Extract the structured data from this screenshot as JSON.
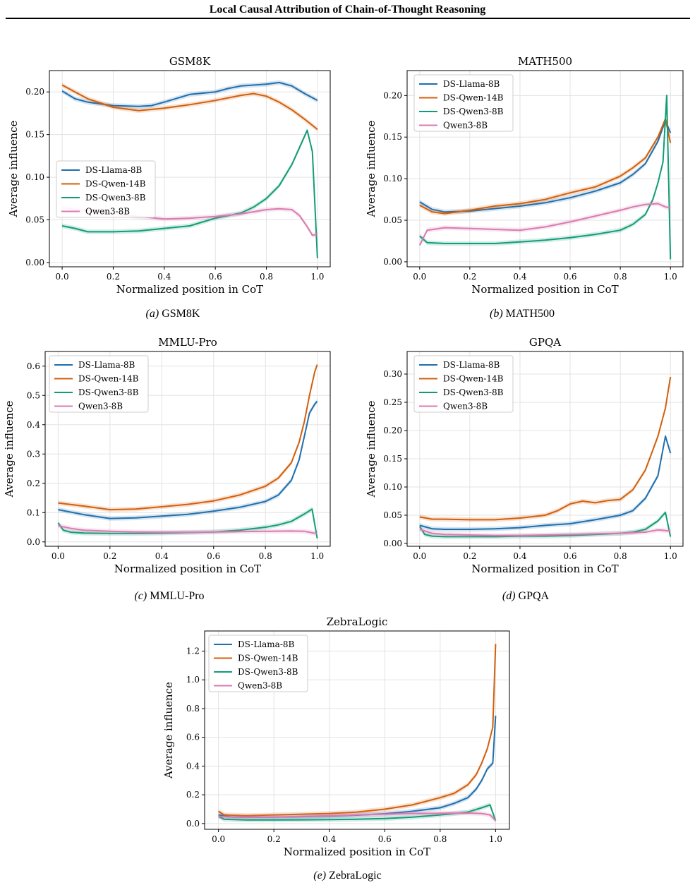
{
  "page": {
    "header_title": "Local Causal Attribution of Chain-of-Thought Reasoning",
    "colors": {
      "DS-Llama-8B": "#1f6fad",
      "DS-Qwen-14B": "#d35f0b",
      "DS-Qwen3-8B": "#129c76",
      "Qwen3-8B": "#d97bb0"
    }
  },
  "chart_data": [
    {
      "id": "a",
      "type": "line",
      "title": "GSM8K",
      "caption_label": "(a)",
      "caption_text": "GSM8K",
      "xlabel": "Normalized position in CoT",
      "ylabel": "Average influence",
      "xlim": [
        -0.05,
        1.05
      ],
      "ylim": [
        -0.005,
        0.225
      ],
      "xticks": [
        0.0,
        0.2,
        0.4,
        0.6,
        0.8,
        1.0
      ],
      "xtick_labels": [
        "0.0",
        "0.2",
        "0.4",
        "0.6",
        "0.8",
        "1.0"
      ],
      "yticks": [
        0.0,
        0.05,
        0.1,
        0.15,
        0.2
      ],
      "ytick_labels": [
        "0.00",
        "0.05",
        "0.10",
        "0.15",
        "0.20"
      ],
      "grid": true,
      "legend_position": "center-left",
      "series": [
        {
          "name": "DS-Llama-8B",
          "x": [
            0,
            0.05,
            0.1,
            0.2,
            0.3,
            0.35,
            0.4,
            0.5,
            0.6,
            0.65,
            0.7,
            0.8,
            0.85,
            0.9,
            0.95,
            1.0
          ],
          "y": [
            0.201,
            0.192,
            0.188,
            0.184,
            0.183,
            0.184,
            0.188,
            0.197,
            0.2,
            0.204,
            0.207,
            0.209,
            0.211,
            0.207,
            0.198,
            0.19
          ]
        },
        {
          "name": "DS-Qwen-14B",
          "x": [
            0,
            0.05,
            0.1,
            0.2,
            0.3,
            0.4,
            0.5,
            0.6,
            0.7,
            0.75,
            0.8,
            0.85,
            0.9,
            0.95,
            1.0
          ],
          "y": [
            0.208,
            0.2,
            0.192,
            0.182,
            0.178,
            0.181,
            0.185,
            0.19,
            0.196,
            0.198,
            0.195,
            0.188,
            0.179,
            0.168,
            0.156
          ]
        },
        {
          "name": "DS-Qwen3-8B",
          "x": [
            0,
            0.05,
            0.1,
            0.2,
            0.3,
            0.4,
            0.5,
            0.6,
            0.7,
            0.75,
            0.8,
            0.85,
            0.9,
            0.93,
            0.96,
            0.98,
            1.0
          ],
          "y": [
            0.043,
            0.04,
            0.036,
            0.036,
            0.037,
            0.04,
            0.043,
            0.052,
            0.058,
            0.065,
            0.075,
            0.09,
            0.115,
            0.135,
            0.155,
            0.13,
            0.005
          ]
        },
        {
          "name": "Qwen3-8B",
          "x": [
            0,
            0.1,
            0.2,
            0.3,
            0.4,
            0.5,
            0.6,
            0.7,
            0.8,
            0.85,
            0.9,
            0.93,
            0.96,
            0.98,
            1.0
          ],
          "y": [
            0.064,
            0.061,
            0.057,
            0.054,
            0.051,
            0.052,
            0.054,
            0.057,
            0.062,
            0.063,
            0.062,
            0.055,
            0.042,
            0.032,
            0.033
          ]
        }
      ]
    },
    {
      "id": "b",
      "type": "line",
      "title": "MATH500",
      "caption_label": "(b)",
      "caption_text": "MATH500",
      "xlabel": "Normalized position in CoT",
      "ylabel": "Average influence",
      "xlim": [
        -0.05,
        1.05
      ],
      "ylim": [
        -0.006,
        0.23
      ],
      "xticks": [
        0.0,
        0.2,
        0.4,
        0.6,
        0.8,
        1.0
      ],
      "xtick_labels": [
        "0.0",
        "0.2",
        "0.4",
        "0.6",
        "0.8",
        "1.0"
      ],
      "yticks": [
        0.0,
        0.05,
        0.1,
        0.15,
        0.2
      ],
      "ytick_labels": [
        "0.00",
        "0.05",
        "0.10",
        "0.15",
        "0.20"
      ],
      "grid": true,
      "legend_position": "top-left",
      "series": [
        {
          "name": "DS-Llama-8B",
          "x": [
            0,
            0.05,
            0.1,
            0.2,
            0.3,
            0.4,
            0.5,
            0.6,
            0.7,
            0.8,
            0.85,
            0.9,
            0.95,
            0.98,
            1.0
          ],
          "y": [
            0.072,
            0.063,
            0.06,
            0.061,
            0.064,
            0.067,
            0.071,
            0.077,
            0.085,
            0.095,
            0.105,
            0.118,
            0.145,
            0.17,
            0.155
          ]
        },
        {
          "name": "DS-Qwen-14B",
          "x": [
            0,
            0.05,
            0.1,
            0.2,
            0.3,
            0.4,
            0.5,
            0.6,
            0.7,
            0.8,
            0.85,
            0.9,
            0.95,
            0.98,
            1.0
          ],
          "y": [
            0.068,
            0.06,
            0.058,
            0.062,
            0.067,
            0.07,
            0.075,
            0.083,
            0.09,
            0.103,
            0.113,
            0.125,
            0.15,
            0.172,
            0.143
          ]
        },
        {
          "name": "DS-Qwen3-8B",
          "x": [
            0,
            0.03,
            0.1,
            0.2,
            0.3,
            0.4,
            0.5,
            0.6,
            0.7,
            0.8,
            0.85,
            0.9,
            0.93,
            0.95,
            0.97,
            0.985,
            1.0
          ],
          "y": [
            0.031,
            0.023,
            0.022,
            0.022,
            0.022,
            0.024,
            0.026,
            0.029,
            0.033,
            0.038,
            0.045,
            0.057,
            0.075,
            0.095,
            0.12,
            0.2,
            0.003
          ]
        },
        {
          "name": "Qwen3-8B",
          "x": [
            0,
            0.03,
            0.1,
            0.2,
            0.3,
            0.4,
            0.5,
            0.6,
            0.7,
            0.8,
            0.85,
            0.9,
            0.95,
            0.98,
            1.0
          ],
          "y": [
            0.02,
            0.038,
            0.041,
            0.04,
            0.039,
            0.038,
            0.042,
            0.048,
            0.055,
            0.062,
            0.066,
            0.069,
            0.07,
            0.066,
            0.065
          ]
        }
      ]
    },
    {
      "id": "c",
      "type": "line",
      "title": "MMLU-Pro",
      "caption_label": "(c)",
      "caption_text": "MMLU-Pro",
      "xlabel": "Normalized position in CoT",
      "ylabel": "Average influence",
      "xlim": [
        -0.05,
        1.05
      ],
      "ylim": [
        -0.015,
        0.65
      ],
      "xticks": [
        0.0,
        0.2,
        0.4,
        0.6,
        0.8,
        1.0
      ],
      "xtick_labels": [
        "0.0",
        "0.2",
        "0.4",
        "0.6",
        "0.8",
        "1.0"
      ],
      "yticks": [
        0.0,
        0.1,
        0.2,
        0.3,
        0.4,
        0.5,
        0.6
      ],
      "ytick_labels": [
        "0.0",
        "0.1",
        "0.2",
        "0.3",
        "0.4",
        "0.5",
        "0.6"
      ],
      "grid": true,
      "legend_position": "top-left",
      "series": [
        {
          "name": "DS-Llama-8B",
          "x": [
            0,
            0.1,
            0.2,
            0.3,
            0.4,
            0.5,
            0.6,
            0.7,
            0.8,
            0.85,
            0.9,
            0.93,
            0.95,
            0.97,
            0.99,
            1.0
          ],
          "y": [
            0.11,
            0.093,
            0.08,
            0.082,
            0.088,
            0.094,
            0.105,
            0.118,
            0.138,
            0.16,
            0.21,
            0.28,
            0.36,
            0.44,
            0.47,
            0.48
          ]
        },
        {
          "name": "DS-Qwen-14B",
          "x": [
            0,
            0.1,
            0.2,
            0.3,
            0.4,
            0.5,
            0.6,
            0.7,
            0.8,
            0.85,
            0.9,
            0.93,
            0.95,
            0.97,
            0.99,
            1.0
          ],
          "y": [
            0.133,
            0.122,
            0.11,
            0.112,
            0.12,
            0.128,
            0.14,
            0.16,
            0.19,
            0.218,
            0.27,
            0.34,
            0.41,
            0.5,
            0.58,
            0.605
          ]
        },
        {
          "name": "DS-Qwen3-8B",
          "x": [
            0,
            0.02,
            0.05,
            0.1,
            0.2,
            0.3,
            0.4,
            0.5,
            0.6,
            0.7,
            0.8,
            0.85,
            0.9,
            0.95,
            0.98,
            1.0
          ],
          "y": [
            0.065,
            0.04,
            0.033,
            0.03,
            0.029,
            0.029,
            0.03,
            0.032,
            0.034,
            0.04,
            0.05,
            0.058,
            0.07,
            0.095,
            0.112,
            0.012
          ]
        },
        {
          "name": "Qwen3-8B",
          "x": [
            0,
            0.05,
            0.1,
            0.2,
            0.3,
            0.4,
            0.5,
            0.6,
            0.7,
            0.8,
            0.9,
            0.95,
            1.0
          ],
          "y": [
            0.055,
            0.046,
            0.04,
            0.036,
            0.034,
            0.033,
            0.033,
            0.034,
            0.035,
            0.036,
            0.037,
            0.036,
            0.028
          ]
        }
      ]
    },
    {
      "id": "d",
      "type": "line",
      "title": "GPQA",
      "caption_label": "(d)",
      "caption_text": "GPQA",
      "xlabel": "Normalized position in CoT",
      "ylabel": "Average influence",
      "xlim": [
        -0.05,
        1.05
      ],
      "ylim": [
        -0.005,
        0.34
      ],
      "xticks": [
        0.0,
        0.2,
        0.4,
        0.6,
        0.8,
        1.0
      ],
      "xtick_labels": [
        "0.0",
        "0.2",
        "0.4",
        "0.6",
        "0.8",
        "1.0"
      ],
      "yticks": [
        0.0,
        0.05,
        0.1,
        0.15,
        0.2,
        0.25,
        0.3
      ],
      "ytick_labels": [
        "0.00",
        "0.05",
        "0.10",
        "0.15",
        "0.20",
        "0.25",
        "0.30"
      ],
      "grid": true,
      "legend_position": "top-left",
      "series": [
        {
          "name": "DS-Llama-8B",
          "x": [
            0,
            0.05,
            0.1,
            0.2,
            0.3,
            0.4,
            0.5,
            0.6,
            0.7,
            0.8,
            0.85,
            0.9,
            0.95,
            0.98,
            1.0
          ],
          "y": [
            0.032,
            0.026,
            0.025,
            0.025,
            0.026,
            0.028,
            0.032,
            0.035,
            0.042,
            0.05,
            0.058,
            0.08,
            0.12,
            0.19,
            0.16
          ]
        },
        {
          "name": "DS-Qwen-14B",
          "x": [
            0,
            0.05,
            0.1,
            0.2,
            0.3,
            0.4,
            0.5,
            0.55,
            0.6,
            0.65,
            0.7,
            0.75,
            0.8,
            0.85,
            0.9,
            0.95,
            0.98,
            1.0
          ],
          "y": [
            0.047,
            0.043,
            0.043,
            0.042,
            0.042,
            0.045,
            0.05,
            0.058,
            0.07,
            0.075,
            0.072,
            0.076,
            0.078,
            0.095,
            0.13,
            0.19,
            0.24,
            0.295
          ]
        },
        {
          "name": "DS-Qwen3-8B",
          "x": [
            0,
            0.02,
            0.05,
            0.1,
            0.2,
            0.3,
            0.4,
            0.5,
            0.6,
            0.7,
            0.8,
            0.85,
            0.9,
            0.95,
            0.98,
            1.0
          ],
          "y": [
            0.03,
            0.016,
            0.013,
            0.012,
            0.012,
            0.012,
            0.013,
            0.013,
            0.014,
            0.016,
            0.018,
            0.02,
            0.025,
            0.04,
            0.055,
            0.012
          ]
        },
        {
          "name": "Qwen3-8B",
          "x": [
            0,
            0.05,
            0.1,
            0.2,
            0.3,
            0.4,
            0.5,
            0.6,
            0.7,
            0.8,
            0.9,
            0.95,
            1.0
          ],
          "y": [
            0.025,
            0.018,
            0.016,
            0.015,
            0.014,
            0.014,
            0.015,
            0.016,
            0.017,
            0.018,
            0.02,
            0.024,
            0.022
          ]
        }
      ]
    },
    {
      "id": "e",
      "type": "line",
      "title": "ZebraLogic",
      "caption_label": "(e)",
      "caption_text": "ZebraLogic",
      "xlabel": "Normalized position in CoT",
      "ylabel": "Average influence",
      "xlim": [
        -0.05,
        1.05
      ],
      "ylim": [
        -0.04,
        1.34
      ],
      "xticks": [
        0.0,
        0.2,
        0.4,
        0.6,
        0.8,
        1.0
      ],
      "xtick_labels": [
        "0.0",
        "0.2",
        "0.4",
        "0.6",
        "0.8",
        "1.0"
      ],
      "yticks": [
        0.0,
        0.2,
        0.4,
        0.6,
        0.8,
        1.0,
        1.2
      ],
      "ytick_labels": [
        "0.0",
        "0.2",
        "0.4",
        "0.6",
        "0.8",
        "1.0",
        "1.2"
      ],
      "grid": true,
      "legend_position": "top-left",
      "series": [
        {
          "name": "DS-Llama-8B",
          "x": [
            0,
            0.05,
            0.1,
            0.2,
            0.3,
            0.4,
            0.5,
            0.6,
            0.7,
            0.8,
            0.85,
            0.9,
            0.93,
            0.95,
            0.97,
            0.99,
            1.0
          ],
          "y": [
            0.06,
            0.045,
            0.045,
            0.045,
            0.048,
            0.052,
            0.058,
            0.068,
            0.085,
            0.11,
            0.14,
            0.18,
            0.24,
            0.3,
            0.38,
            0.42,
            0.75
          ]
        },
        {
          "name": "DS-Qwen-14B",
          "x": [
            0,
            0.02,
            0.1,
            0.2,
            0.3,
            0.4,
            0.5,
            0.6,
            0.7,
            0.8,
            0.85,
            0.9,
            0.93,
            0.95,
            0.97,
            0.99,
            1.0
          ],
          "y": [
            0.085,
            0.06,
            0.055,
            0.06,
            0.065,
            0.07,
            0.08,
            0.1,
            0.13,
            0.18,
            0.21,
            0.27,
            0.34,
            0.42,
            0.52,
            0.67,
            1.25
          ]
        },
        {
          "name": "DS-Qwen3-8B",
          "x": [
            0,
            0.02,
            0.1,
            0.2,
            0.3,
            0.4,
            0.5,
            0.6,
            0.7,
            0.8,
            0.9,
            0.95,
            0.98,
            1.0
          ],
          "y": [
            0.05,
            0.03,
            0.025,
            0.025,
            0.026,
            0.028,
            0.03,
            0.035,
            0.045,
            0.06,
            0.08,
            0.11,
            0.13,
            0.02
          ]
        },
        {
          "name": "Qwen3-8B",
          "x": [
            0,
            0.05,
            0.1,
            0.2,
            0.3,
            0.4,
            0.5,
            0.6,
            0.7,
            0.8,
            0.9,
            0.95,
            0.98,
            1.0
          ],
          "y": [
            0.05,
            0.045,
            0.045,
            0.045,
            0.05,
            0.055,
            0.06,
            0.065,
            0.07,
            0.072,
            0.073,
            0.07,
            0.06,
            0.02
          ]
        }
      ]
    }
  ]
}
